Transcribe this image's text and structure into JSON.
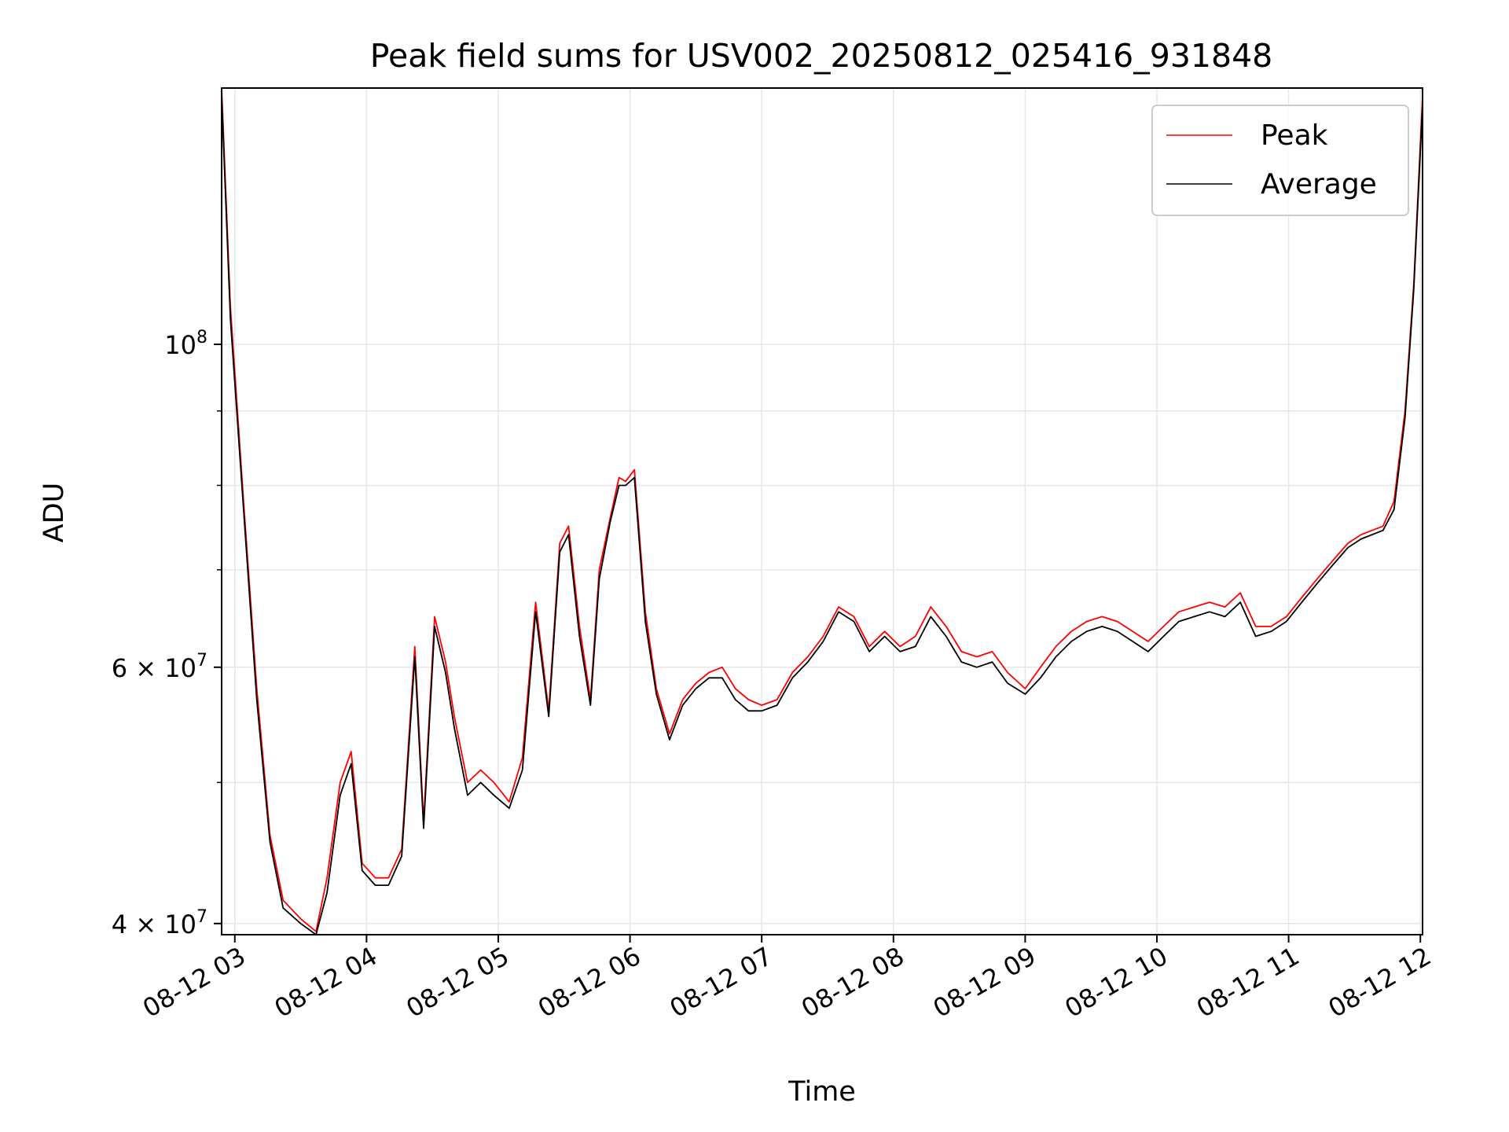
{
  "chart_data": {
    "type": "line",
    "title": "Peak field sums for USV002_20250812_025416_931848",
    "xlabel": "Time",
    "ylabel": "ADU",
    "y_scale": "log",
    "ylim": [
      39300000,
      150000000
    ],
    "xlim": [
      "08-12 02:54",
      "08-12 12:01"
    ],
    "grid": true,
    "legend_position": "upper right",
    "x_ticks": [
      "08-12 03",
      "08-12 04",
      "08-12 05",
      "08-12 06",
      "08-12 07",
      "08-12 08",
      "08-12 09",
      "08-12 10",
      "08-12 11",
      "08-12 12"
    ],
    "x_tick_values": [
      "08-12 03:00",
      "08-12 04:00",
      "08-12 05:00",
      "08-12 06:00",
      "08-12 07:00",
      "08-12 08:00",
      "08-12 09:00",
      "08-12 10:00",
      "08-12 11:00",
      "08-12 12:00"
    ],
    "y_ticks": [
      {
        "value": 40000000,
        "base": "4",
        "mant": "10",
        "exp": "7"
      },
      {
        "value": 60000000,
        "base": "6",
        "mant": "10",
        "exp": "7"
      },
      {
        "value": 100000000,
        "base": "",
        "mant": "10",
        "exp": "8"
      }
    ],
    "y_minor_ticks": [
      50000000,
      70000000,
      80000000,
      90000000
    ],
    "series": [
      {
        "name": "Peak",
        "color": "#ff0000",
        "x": [
          "08-12 02:54",
          "08-12 02:58",
          "08-12 03:04",
          "08-12 03:10",
          "08-12 03:16",
          "08-12 03:22",
          "08-12 03:30",
          "08-12 03:37",
          "08-12 03:42",
          "08-12 03:48",
          "08-12 03:53",
          "08-12 03:58",
          "08-12 04:04",
          "08-12 04:10",
          "08-12 04:16",
          "08-12 04:22",
          "08-12 04:26",
          "08-12 04:31",
          "08-12 04:36",
          "08-12 04:40",
          "08-12 04:46",
          "08-12 04:52",
          "08-12 04:58",
          "08-12 05:05",
          "08-12 05:11",
          "08-12 05:17",
          "08-12 05:23",
          "08-12 05:28",
          "08-12 05:32",
          "08-12 05:37",
          "08-12 05:42",
          "08-12 05:46",
          "08-12 05:51",
          "08-12 05:55",
          "08-12 05:58",
          "08-12 06:02",
          "08-12 06:07",
          "08-12 06:12",
          "08-12 06:18",
          "08-12 06:24",
          "08-12 06:30",
          "08-12 06:36",
          "08-12 06:42",
          "08-12 06:48",
          "08-12 06:54",
          "08-12 07:00",
          "08-12 07:07",
          "08-12 07:14",
          "08-12 07:21",
          "08-12 07:28",
          "08-12 07:35",
          "08-12 07:42",
          "08-12 07:49",
          "08-12 07:56",
          "08-12 08:03",
          "08-12 08:10",
          "08-12 08:17",
          "08-12 08:24",
          "08-12 08:31",
          "08-12 08:38",
          "08-12 08:45",
          "08-12 08:52",
          "08-12 09:00",
          "08-12 09:07",
          "08-12 09:14",
          "08-12 09:21",
          "08-12 09:28",
          "08-12 09:35",
          "08-12 09:42",
          "08-12 09:49",
          "08-12 09:56",
          "08-12 10:03",
          "08-12 10:10",
          "08-12 10:17",
          "08-12 10:24",
          "08-12 10:31",
          "08-12 10:38",
          "08-12 10:45",
          "08-12 10:52",
          "08-12 10:59",
          "08-12 11:06",
          "08-12 11:13",
          "08-12 11:20",
          "08-12 11:27",
          "08-12 11:33",
          "08-12 11:38",
          "08-12 11:43",
          "08-12 11:48",
          "08-12 11:53",
          "08-12 11:57",
          "08-12 12:01"
        ],
        "values": [
          150000000,
          106000000,
          78000000,
          58000000,
          46000000,
          41500000,
          40300000,
          39500000,
          43000000,
          50000000,
          52500000,
          44000000,
          43000000,
          43000000,
          45000000,
          62000000,
          47000000,
          65000000,
          60500000,
          55500000,
          50000000,
          51000000,
          50000000,
          48500000,
          52000000,
          66500000,
          56000000,
          73000000,
          75000000,
          64000000,
          57000000,
          70000000,
          76000000,
          81000000,
          80500000,
          82000000,
          65500000,
          58000000,
          54000000,
          57000000,
          58500000,
          59500000,
          60000000,
          58000000,
          57000000,
          56500000,
          57000000,
          59500000,
          61000000,
          63000000,
          66000000,
          65000000,
          62000000,
          63500000,
          62000000,
          63000000,
          66000000,
          64000000,
          61500000,
          61000000,
          61500000,
          59500000,
          58000000,
          60000000,
          62000000,
          63500000,
          64500000,
          65000000,
          64500000,
          63500000,
          62500000,
          64000000,
          65500000,
          66000000,
          66500000,
          66000000,
          67500000,
          64000000,
          64000000,
          65000000,
          67000000,
          69000000,
          71000000,
          73000000,
          74000000,
          74500000,
          75000000,
          78000000,
          90000000,
          110000000,
          148000000
        ]
      },
      {
        "name": "Average",
        "color": "#000000",
        "x": [
          "08-12 02:54",
          "08-12 02:58",
          "08-12 03:04",
          "08-12 03:10",
          "08-12 03:16",
          "08-12 03:22",
          "08-12 03:30",
          "08-12 03:37",
          "08-12 03:42",
          "08-12 03:48",
          "08-12 03:53",
          "08-12 03:58",
          "08-12 04:04",
          "08-12 04:10",
          "08-12 04:16",
          "08-12 04:22",
          "08-12 04:26",
          "08-12 04:31",
          "08-12 04:36",
          "08-12 04:40",
          "08-12 04:46",
          "08-12 04:52",
          "08-12 04:58",
          "08-12 05:05",
          "08-12 05:11",
          "08-12 05:17",
          "08-12 05:23",
          "08-12 05:28",
          "08-12 05:32",
          "08-12 05:37",
          "08-12 05:42",
          "08-12 05:46",
          "08-12 05:51",
          "08-12 05:55",
          "08-12 05:58",
          "08-12 06:02",
          "08-12 06:07",
          "08-12 06:12",
          "08-12 06:18",
          "08-12 06:24",
          "08-12 06:30",
          "08-12 06:36",
          "08-12 06:42",
          "08-12 06:48",
          "08-12 06:54",
          "08-12 07:00",
          "08-12 07:07",
          "08-12 07:14",
          "08-12 07:21",
          "08-12 07:28",
          "08-12 07:35",
          "08-12 07:42",
          "08-12 07:49",
          "08-12 07:56",
          "08-12 08:03",
          "08-12 08:10",
          "08-12 08:17",
          "08-12 08:24",
          "08-12 08:31",
          "08-12 08:38",
          "08-12 08:45",
          "08-12 08:52",
          "08-12 09:00",
          "08-12 09:07",
          "08-12 09:14",
          "08-12 09:21",
          "08-12 09:28",
          "08-12 09:35",
          "08-12 09:42",
          "08-12 09:49",
          "08-12 09:56",
          "08-12 10:03",
          "08-12 10:10",
          "08-12 10:17",
          "08-12 10:24",
          "08-12 10:31",
          "08-12 10:38",
          "08-12 10:45",
          "08-12 10:52",
          "08-12 10:59",
          "08-12 11:06",
          "08-12 11:13",
          "08-12 11:20",
          "08-12 11:27",
          "08-12 11:33",
          "08-12 11:38",
          "08-12 11:43",
          "08-12 11:48",
          "08-12 11:53",
          "08-12 11:57",
          "08-12 12:01"
        ],
        "values": [
          148000000,
          104000000,
          77000000,
          57000000,
          45500000,
          41000000,
          40000000,
          39300000,
          42000000,
          49000000,
          51500000,
          43500000,
          42500000,
          42500000,
          44500000,
          61000000,
          46500000,
          64000000,
          59500000,
          54500000,
          49000000,
          50000000,
          49000000,
          48000000,
          51000000,
          65500000,
          55500000,
          72000000,
          74000000,
          63000000,
          56500000,
          69000000,
          75500000,
          80000000,
          80000000,
          81000000,
          64500000,
          57500000,
          53500000,
          56500000,
          58000000,
          59000000,
          59000000,
          57000000,
          56000000,
          56000000,
          56500000,
          59000000,
          60500000,
          62500000,
          65500000,
          64500000,
          61500000,
          63000000,
          61500000,
          62000000,
          65000000,
          63000000,
          60500000,
          60000000,
          60500000,
          58500000,
          57500000,
          59000000,
          61000000,
          62500000,
          63500000,
          64000000,
          63500000,
          62500000,
          61500000,
          63000000,
          64500000,
          65000000,
          65500000,
          65000000,
          66500000,
          63000000,
          63500000,
          64500000,
          66500000,
          68500000,
          70500000,
          72500000,
          73500000,
          74000000,
          74500000,
          77000000,
          89000000,
          109000000,
          146000000
        ]
      }
    ]
  }
}
